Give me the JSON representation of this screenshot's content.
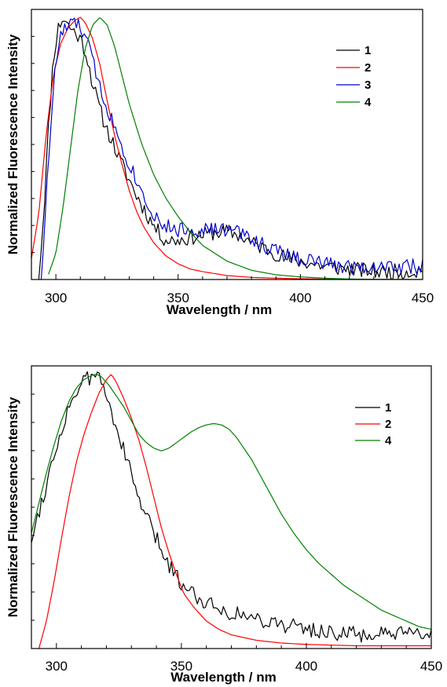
{
  "chart_data": [
    {
      "type": "line",
      "xlabel": "Wavelength / nm",
      "ylabel": "Normalized Fluorescence Intensity",
      "xlim": [
        290,
        450
      ],
      "ylim": [
        0,
        1.03
      ],
      "xticks": [
        "300",
        "350",
        "400",
        "450"
      ],
      "yticks_labeled": false,
      "legend_position": "top-right",
      "series": [
        {
          "name": "1",
          "color": "#000000",
          "noise": 0.03,
          "seed": 11,
          "x": [
            293,
            295,
            297,
            299,
            301,
            303,
            305,
            307,
            309,
            311,
            313,
            315,
            317,
            319,
            321,
            323,
            325,
            327,
            330,
            333,
            336,
            339,
            342,
            345,
            350,
            355,
            360,
            365,
            370,
            375,
            380,
            385,
            390,
            395,
            400,
            410,
            420,
            430,
            440,
            450
          ],
          "y": [
            0.0,
            0.25,
            0.58,
            0.85,
            0.96,
            1.0,
            0.97,
            0.95,
            0.93,
            0.9,
            0.84,
            0.75,
            0.68,
            0.62,
            0.57,
            0.53,
            0.48,
            0.44,
            0.38,
            0.32,
            0.27,
            0.22,
            0.18,
            0.15,
            0.15,
            0.16,
            0.17,
            0.18,
            0.18,
            0.17,
            0.14,
            0.12,
            0.1,
            0.08,
            0.07,
            0.05,
            0.04,
            0.03,
            0.03,
            0.03
          ]
        },
        {
          "name": "2",
          "color": "#ff0000",
          "noise": 0.0,
          "seed": 22,
          "x": [
            290,
            293,
            296,
            299,
            302,
            305,
            308,
            310,
            312,
            315,
            318,
            321,
            324,
            327,
            330,
            333,
            336,
            340,
            345,
            350,
            355,
            360,
            370,
            380,
            390,
            400,
            420,
            450
          ],
          "y": [
            0.08,
            0.25,
            0.55,
            0.78,
            0.9,
            0.96,
            0.99,
            1.0,
            0.98,
            0.92,
            0.82,
            0.68,
            0.55,
            0.44,
            0.34,
            0.26,
            0.2,
            0.14,
            0.09,
            0.06,
            0.04,
            0.03,
            0.015,
            0.008,
            0.005,
            0.003,
            0.0,
            0.0
          ]
        },
        {
          "name": "3",
          "color": "#0000cc",
          "noise": 0.03,
          "seed": 33,
          "x": [
            294,
            296,
            298,
            300,
            302,
            304,
            306,
            308,
            310,
            312,
            314,
            316,
            318,
            320,
            322,
            325,
            328,
            331,
            334,
            337,
            340,
            345,
            350,
            355,
            360,
            365,
            370,
            375,
            380,
            385,
            390,
            395,
            400,
            410,
            420,
            430,
            440,
            450
          ],
          "y": [
            0.0,
            0.3,
            0.6,
            0.83,
            0.93,
            0.96,
            0.97,
            0.98,
            0.96,
            0.93,
            0.87,
            0.8,
            0.74,
            0.68,
            0.63,
            0.56,
            0.49,
            0.42,
            0.36,
            0.3,
            0.25,
            0.2,
            0.19,
            0.19,
            0.19,
            0.19,
            0.19,
            0.18,
            0.16,
            0.13,
            0.11,
            0.09,
            0.08,
            0.06,
            0.05,
            0.05,
            0.05,
            0.05
          ]
        },
        {
          "name": "4",
          "color": "#008000",
          "noise": 0.0,
          "seed": 44,
          "x": [
            297,
            300,
            303,
            306,
            309,
            312,
            315,
            318,
            321,
            324,
            327,
            330,
            335,
            340,
            345,
            350,
            355,
            360,
            365,
            370,
            380,
            390,
            400,
            410,
            420,
            430,
            450
          ],
          "y": [
            0.02,
            0.1,
            0.28,
            0.5,
            0.72,
            0.88,
            0.97,
            1.0,
            0.97,
            0.89,
            0.78,
            0.67,
            0.52,
            0.4,
            0.31,
            0.24,
            0.18,
            0.13,
            0.1,
            0.07,
            0.035,
            0.018,
            0.01,
            0.005,
            0.002,
            0.001,
            0.0
          ]
        }
      ]
    },
    {
      "type": "line",
      "xlabel": "Wavelength / nm",
      "ylabel": "Normalized Fluorescence Intensity",
      "xlim": [
        290,
        450
      ],
      "ylim": [
        0,
        1.03
      ],
      "xticks": [
        "300",
        "350",
        "400",
        "450"
      ],
      "yticks_labeled": false,
      "legend_position": "top-right",
      "series": [
        {
          "name": "1",
          "color": "#000000",
          "noise": 0.03,
          "seed": 55,
          "x": [
            290,
            293,
            296,
            299,
            302,
            305,
            308,
            311,
            314,
            316,
            318,
            320,
            323,
            326,
            329,
            332,
            335,
            338,
            341,
            344,
            347,
            350,
            355,
            360,
            365,
            370,
            375,
            380,
            385,
            390,
            395,
            400,
            410,
            420,
            430,
            440,
            450
          ],
          "y": [
            0.4,
            0.5,
            0.6,
            0.7,
            0.8,
            0.88,
            0.94,
            0.97,
            0.99,
            1.0,
            0.97,
            0.92,
            0.84,
            0.75,
            0.66,
            0.57,
            0.5,
            0.44,
            0.38,
            0.32,
            0.28,
            0.24,
            0.2,
            0.17,
            0.15,
            0.13,
            0.12,
            0.11,
            0.1,
            0.09,
            0.08,
            0.07,
            0.06,
            0.05,
            0.05,
            0.05,
            0.05
          ]
        },
        {
          "name": "2",
          "color": "#ff0000",
          "noise": 0.0,
          "seed": 66,
          "x": [
            293,
            296,
            299,
            302,
            305,
            308,
            311,
            314,
            317,
            320,
            322,
            324,
            327,
            330,
            333,
            336,
            339,
            342,
            345,
            348,
            351,
            355,
            360,
            365,
            370,
            380,
            390,
            400,
            420,
            450
          ],
          "y": [
            0.0,
            0.1,
            0.24,
            0.4,
            0.55,
            0.68,
            0.78,
            0.86,
            0.93,
            0.98,
            1.0,
            0.97,
            0.91,
            0.84,
            0.76,
            0.66,
            0.55,
            0.44,
            0.35,
            0.27,
            0.2,
            0.15,
            0.1,
            0.07,
            0.05,
            0.03,
            0.02,
            0.015,
            0.01,
            0.01
          ]
        },
        {
          "name": "4",
          "color": "#008000",
          "noise": 0.0,
          "seed": 77,
          "x": [
            290,
            293,
            296,
            299,
            302,
            305,
            308,
            311,
            314,
            316,
            318,
            321,
            324,
            327,
            330,
            333,
            336,
            339,
            342,
            345,
            348,
            351,
            354,
            357,
            360,
            363,
            366,
            369,
            372,
            375,
            378,
            381,
            384,
            387,
            390,
            395,
            400,
            405,
            410,
            415,
            420,
            425,
            430,
            435,
            440,
            445,
            450
          ],
          "y": [
            0.42,
            0.53,
            0.64,
            0.74,
            0.83,
            0.9,
            0.95,
            0.98,
            0.995,
            1.0,
            0.99,
            0.96,
            0.92,
            0.88,
            0.83,
            0.78,
            0.75,
            0.73,
            0.72,
            0.73,
            0.75,
            0.77,
            0.79,
            0.805,
            0.815,
            0.82,
            0.815,
            0.8,
            0.77,
            0.73,
            0.69,
            0.64,
            0.59,
            0.54,
            0.49,
            0.42,
            0.36,
            0.31,
            0.27,
            0.23,
            0.2,
            0.17,
            0.14,
            0.12,
            0.1,
            0.08,
            0.07
          ]
        }
      ]
    }
  ]
}
